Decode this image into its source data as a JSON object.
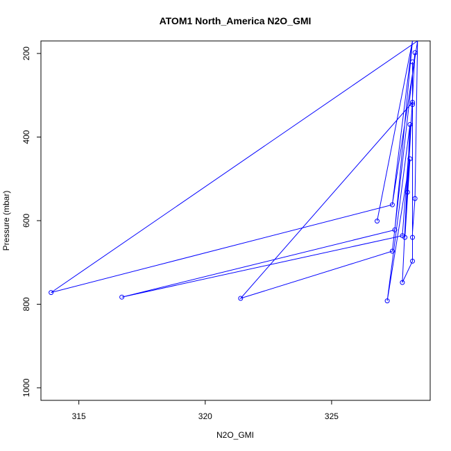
{
  "chart_data": {
    "type": "line",
    "title": "ATOM1 North_America N2O_GMI",
    "xlabel": "N2O_GMI",
    "ylabel": "Pressure (mbar)",
    "xlim": [
      313.5,
      328.9
    ],
    "ylim": [
      1030,
      170
    ],
    "y_reversed": true,
    "xticks": [
      315,
      320,
      325
    ],
    "yticks": [
      200,
      400,
      600,
      800,
      1000
    ],
    "grid": false,
    "legend": "none",
    "color": "#0000ff",
    "series": [
      {
        "points": [
          {
            "x": 326.8,
            "y": 601
          },
          {
            "x": 328.2,
            "y": 170
          },
          {
            "x": 327.4,
            "y": 562
          },
          {
            "x": 328.4,
            "y": 170
          },
          {
            "x": 313.9,
            "y": 772
          },
          {
            "x": 327.4,
            "y": 562
          },
          {
            "x": 328.2,
            "y": 170
          },
          {
            "x": 327.5,
            "y": 622
          },
          {
            "x": 316.7,
            "y": 783
          },
          {
            "x": 327.8,
            "y": 636
          },
          {
            "x": 328.2,
            "y": 317
          },
          {
            "x": 321.4,
            "y": 786
          },
          {
            "x": 327.4,
            "y": 673
          },
          {
            "x": 328.3,
            "y": 198
          },
          {
            "x": 327.9,
            "y": 640
          },
          {
            "x": 328.1,
            "y": 452
          },
          {
            "x": 327.2,
            "y": 792
          },
          {
            "x": 328.1,
            "y": 370
          },
          {
            "x": 327.8,
            "y": 748
          },
          {
            "x": 328.2,
            "y": 697
          },
          {
            "x": 328.2,
            "y": 640
          },
          {
            "x": 328.2,
            "y": 322
          },
          {
            "x": 328.2,
            "y": 220
          },
          {
            "x": 328.2,
            "y": 628
          },
          {
            "x": 328.3,
            "y": 547
          },
          {
            "x": 328.4,
            "y": 170
          }
        ],
        "markers": [
          {
            "x": 326.8,
            "y": 601
          },
          {
            "x": 327.4,
            "y": 562
          },
          {
            "x": 313.9,
            "y": 772
          },
          {
            "x": 327.5,
            "y": 622
          },
          {
            "x": 316.7,
            "y": 783
          },
          {
            "x": 327.8,
            "y": 636
          },
          {
            "x": 328.2,
            "y": 317
          },
          {
            "x": 321.4,
            "y": 786
          },
          {
            "x": 327.4,
            "y": 673
          },
          {
            "x": 328.3,
            "y": 198
          },
          {
            "x": 327.9,
            "y": 640
          },
          {
            "x": 328.1,
            "y": 452
          },
          {
            "x": 327.2,
            "y": 792
          },
          {
            "x": 328.1,
            "y": 370
          },
          {
            "x": 327.8,
            "y": 748
          },
          {
            "x": 328.2,
            "y": 697
          },
          {
            "x": 328.2,
            "y": 640
          },
          {
            "x": 328.2,
            "y": 322
          },
          {
            "x": 328.2,
            "y": 220
          },
          {
            "x": 328.3,
            "y": 547
          },
          {
            "x": 328.0,
            "y": 532
          }
        ]
      }
    ]
  }
}
